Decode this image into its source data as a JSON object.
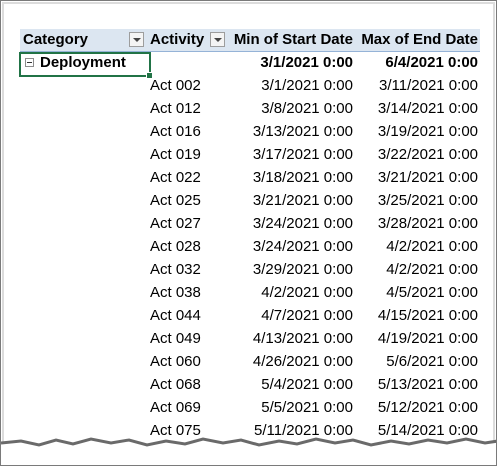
{
  "headers": {
    "category": "Category",
    "activity": "Activity",
    "min_start": "Min of Start Date",
    "max_end": "Max of End Date"
  },
  "group": {
    "category": "Deployment",
    "min_start": "3/1/2021 0:00",
    "max_end": "6/4/2021 0:00"
  },
  "rows": [
    {
      "activity": "Act 002",
      "min_start": "3/1/2021 0:00",
      "max_end": "3/11/2021 0:00"
    },
    {
      "activity": "Act 012",
      "min_start": "3/8/2021 0:00",
      "max_end": "3/14/2021 0:00"
    },
    {
      "activity": "Act 016",
      "min_start": "3/13/2021 0:00",
      "max_end": "3/19/2021 0:00"
    },
    {
      "activity": "Act 019",
      "min_start": "3/17/2021 0:00",
      "max_end": "3/22/2021 0:00"
    },
    {
      "activity": "Act 022",
      "min_start": "3/18/2021 0:00",
      "max_end": "3/21/2021 0:00"
    },
    {
      "activity": "Act 025",
      "min_start": "3/21/2021 0:00",
      "max_end": "3/25/2021 0:00"
    },
    {
      "activity": "Act 027",
      "min_start": "3/24/2021 0:00",
      "max_end": "3/28/2021 0:00"
    },
    {
      "activity": "Act 028",
      "min_start": "3/24/2021 0:00",
      "max_end": "4/2/2021 0:00"
    },
    {
      "activity": "Act 032",
      "min_start": "3/29/2021 0:00",
      "max_end": "4/2/2021 0:00"
    },
    {
      "activity": "Act 038",
      "min_start": "4/2/2021 0:00",
      "max_end": "4/5/2021 0:00"
    },
    {
      "activity": "Act 044",
      "min_start": "4/7/2021 0:00",
      "max_end": "4/15/2021 0:00"
    },
    {
      "activity": "Act 049",
      "min_start": "4/13/2021 0:00",
      "max_end": "4/19/2021 0:00"
    },
    {
      "activity": "Act 060",
      "min_start": "4/26/2021 0:00",
      "max_end": "5/6/2021 0:00"
    },
    {
      "activity": "Act 068",
      "min_start": "5/4/2021 0:00",
      "max_end": "5/13/2021 0:00"
    },
    {
      "activity": "Act 069",
      "min_start": "5/5/2021 0:00",
      "max_end": "5/12/2021 0:00"
    },
    {
      "activity": "Act 075",
      "min_start": "5/11/2021 0:00",
      "max_end": "5/14/2021 0:00"
    }
  ]
}
